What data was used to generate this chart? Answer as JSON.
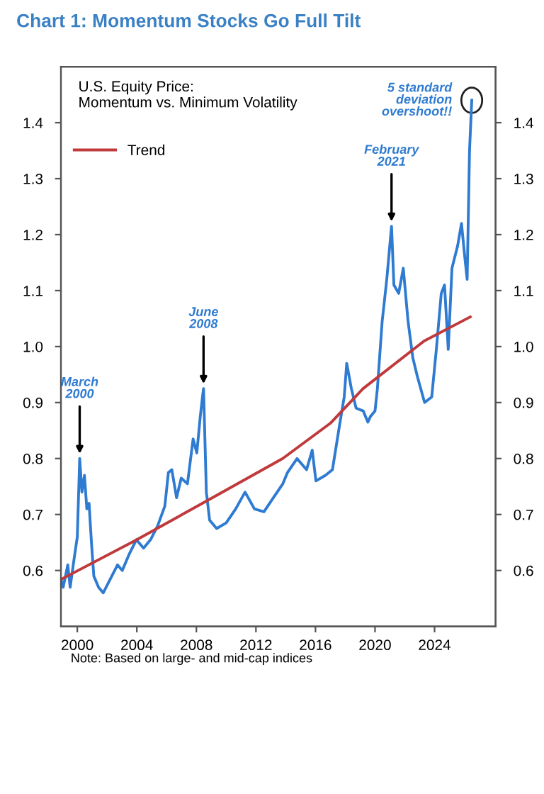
{
  "chart_data": {
    "type": "line",
    "title": "Chart 1: Momentum Stocks Go Full Tilt",
    "subtitle": "U.S. Equity Price:\nMomentum vs. Minimum Volatility",
    "series": [
      {
        "color": "#2e7bd1",
        "x": [
          1998.95,
          1999.05,
          1999.36,
          1999.52,
          1999.78,
          2000.0,
          2000.16,
          2000.31,
          2000.48,
          2000.64,
          2000.79,
          2000.95,
          2001.11,
          2001.43,
          2001.74,
          2002.22,
          2002.7,
          2003.02,
          2003.5,
          2003.97,
          2004.45,
          2004.92,
          2005.4,
          2005.88,
          2006.12,
          2006.35,
          2006.67,
          2006.98,
          2007.4,
          2007.78,
          2008.03,
          2008.26,
          2008.41,
          2008.48,
          2008.67,
          2008.89,
          2009.36,
          2010.0,
          2010.64,
          2011.27,
          2011.9,
          2012.54,
          2013.17,
          2013.81,
          2014.12,
          2014.76,
          2015.4,
          2015.78,
          2016.03,
          2016.67,
          2017.14,
          2017.62,
          2017.93,
          2018.1,
          2018.41,
          2018.73,
          2019.21,
          2019.52,
          2019.69,
          2020.0,
          2020.16,
          2020.48,
          2020.79,
          2021.11,
          2021.27,
          2021.59,
          2021.9,
          2022.22,
          2022.54,
          2022.86,
          2023.33,
          2023.81,
          2024.12,
          2024.45,
          2024.67,
          2024.92,
          2025.17,
          2025.55,
          2025.81,
          2026.03,
          2026.19,
          2026.35,
          2026.5
        ],
        "values": [
          0.58,
          0.57,
          0.61,
          0.57,
          0.62,
          0.66,
          0.8,
          0.74,
          0.77,
          0.71,
          0.72,
          0.65,
          0.59,
          0.57,
          0.56,
          0.585,
          0.61,
          0.6,
          0.63,
          0.655,
          0.64,
          0.655,
          0.68,
          0.715,
          0.775,
          0.78,
          0.73,
          0.765,
          0.755,
          0.835,
          0.81,
          0.875,
          0.91,
          0.925,
          0.74,
          0.69,
          0.675,
          0.685,
          0.71,
          0.74,
          0.71,
          0.705,
          0.73,
          0.755,
          0.775,
          0.8,
          0.78,
          0.815,
          0.76,
          0.77,
          0.78,
          0.86,
          0.91,
          0.97,
          0.925,
          0.89,
          0.885,
          0.865,
          0.875,
          0.885,
          0.925,
          1.045,
          1.12,
          1.215,
          1.11,
          1.095,
          1.14,
          1.045,
          0.98,
          0.945,
          0.9,
          0.91,
          0.995,
          1.095,
          1.11,
          0.995,
          1.14,
          1.18,
          1.22,
          1.16,
          1.12,
          1.35,
          1.44
        ]
      },
      {
        "name": "Trend",
        "color": "#c0393b",
        "x": [
          1998.9,
          2004.0,
          2008.4,
          2013.8,
          2017.0,
          2019.2,
          2023.3,
          2026.4
        ],
        "values": [
          0.584,
          0.655,
          0.72,
          0.8,
          0.863,
          0.925,
          1.01,
          1.053
        ]
      }
    ],
    "xlim": [
      1998.9,
      2028.1
    ],
    "xticks": [
      2000,
      2004,
      2008,
      2012,
      2016,
      2020,
      2024
    ],
    "ylim": [
      0.5,
      1.5
    ],
    "yticks": [
      0.6,
      0.7,
      0.8,
      0.9,
      {
        "value": 1.0,
        "label": "1.0"
      },
      1.1,
      1.2,
      1.3,
      1.4
    ],
    "y2lim": [
      0.5,
      1.5
    ],
    "y2ticks": [
      0.6,
      0.7,
      0.8,
      0.9,
      {
        "value": 1.0,
        "label": "1.0"
      },
      1.1,
      1.2,
      1.3,
      1.4
    ],
    "legend": "top left",
    "grid": false,
    "annotations": [
      {
        "text": "March\n2000",
        "x": 2000.16,
        "y": 0.8
      },
      {
        "text": "June\n2008",
        "x": 2008.48,
        "y": 0.925
      },
      {
        "text": "February\n2021",
        "x": 2021.11,
        "y": 1.215
      },
      {
        "text": "5 standard\ndeviation\novershoot!!",
        "x": 2026.5,
        "y": 1.44
      },
      "Note: Based on large- and mid-cap indices"
    ]
  }
}
